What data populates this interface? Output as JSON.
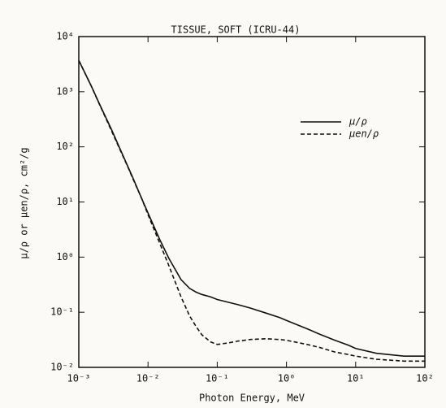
{
  "chart_data": {
    "type": "line",
    "title": "TISSUE, SOFT (ICRU-44)",
    "x_label": "Photon Energy, MeV",
    "y_label": "μ/ρ or μen/ρ, cm²/g",
    "log_x": true,
    "log_y": true,
    "legend": "upper-right",
    "x": [
      0.001,
      0.0015,
      0.002,
      0.003,
      0.004,
      0.005,
      0.006,
      0.008,
      0.01,
      0.015,
      0.02,
      0.03,
      0.04,
      0.05,
      0.06,
      0.08,
      0.1,
      0.15,
      0.2,
      0.3,
      0.5,
      0.8,
      1,
      2,
      3,
      5,
      8,
      10,
      20,
      50,
      100
    ],
    "series": [
      {
        "name": "μ/ρ",
        "color": "#111111",
        "line_style": "solid",
        "values": [
          3700,
          1300,
          590,
          200,
          88,
          47,
          28,
          12,
          6.3,
          2.0,
          0.95,
          0.39,
          0.27,
          0.23,
          0.21,
          0.19,
          0.17,
          0.15,
          0.137,
          0.119,
          0.097,
          0.08,
          0.071,
          0.05,
          0.04,
          0.031,
          0.025,
          0.022,
          0.018,
          0.016,
          0.016
        ]
      },
      {
        "name": "μen/ρ",
        "color": "#111111",
        "line_style": "dashed",
        "values": [
          3700,
          1300,
          580,
          190,
          85,
          46,
          27,
          12,
          5.9,
          1.7,
          0.7,
          0.19,
          0.085,
          0.054,
          0.039,
          0.029,
          0.026,
          0.028,
          0.03,
          0.032,
          0.033,
          0.032,
          0.031,
          0.026,
          0.023,
          0.019,
          0.017,
          0.016,
          0.014,
          0.013,
          0.013
        ]
      }
    ],
    "xlim": [
      0.001,
      100
    ],
    "ylim": [
      0.01,
      10000
    ],
    "xticks": [
      {
        "value": 0.001,
        "label": "10⁻³"
      },
      {
        "value": 0.01,
        "label": "10⁻²"
      },
      {
        "value": 0.1,
        "label": "10⁻¹"
      },
      {
        "value": 1,
        "label": "10⁰"
      },
      {
        "value": 10,
        "label": "10¹"
      },
      {
        "value": 100,
        "label": "10²"
      }
    ],
    "yticks": [
      {
        "value": 0.01,
        "label": "10⁻²"
      },
      {
        "value": 0.1,
        "label": "10⁻¹"
      },
      {
        "value": 1,
        "label": "10⁰"
      },
      {
        "value": 10,
        "label": "10¹"
      },
      {
        "value": 100,
        "label": "10²"
      },
      {
        "value": 1000,
        "label": "10³"
      },
      {
        "value": 10000,
        "label": "10⁴"
      }
    ]
  }
}
